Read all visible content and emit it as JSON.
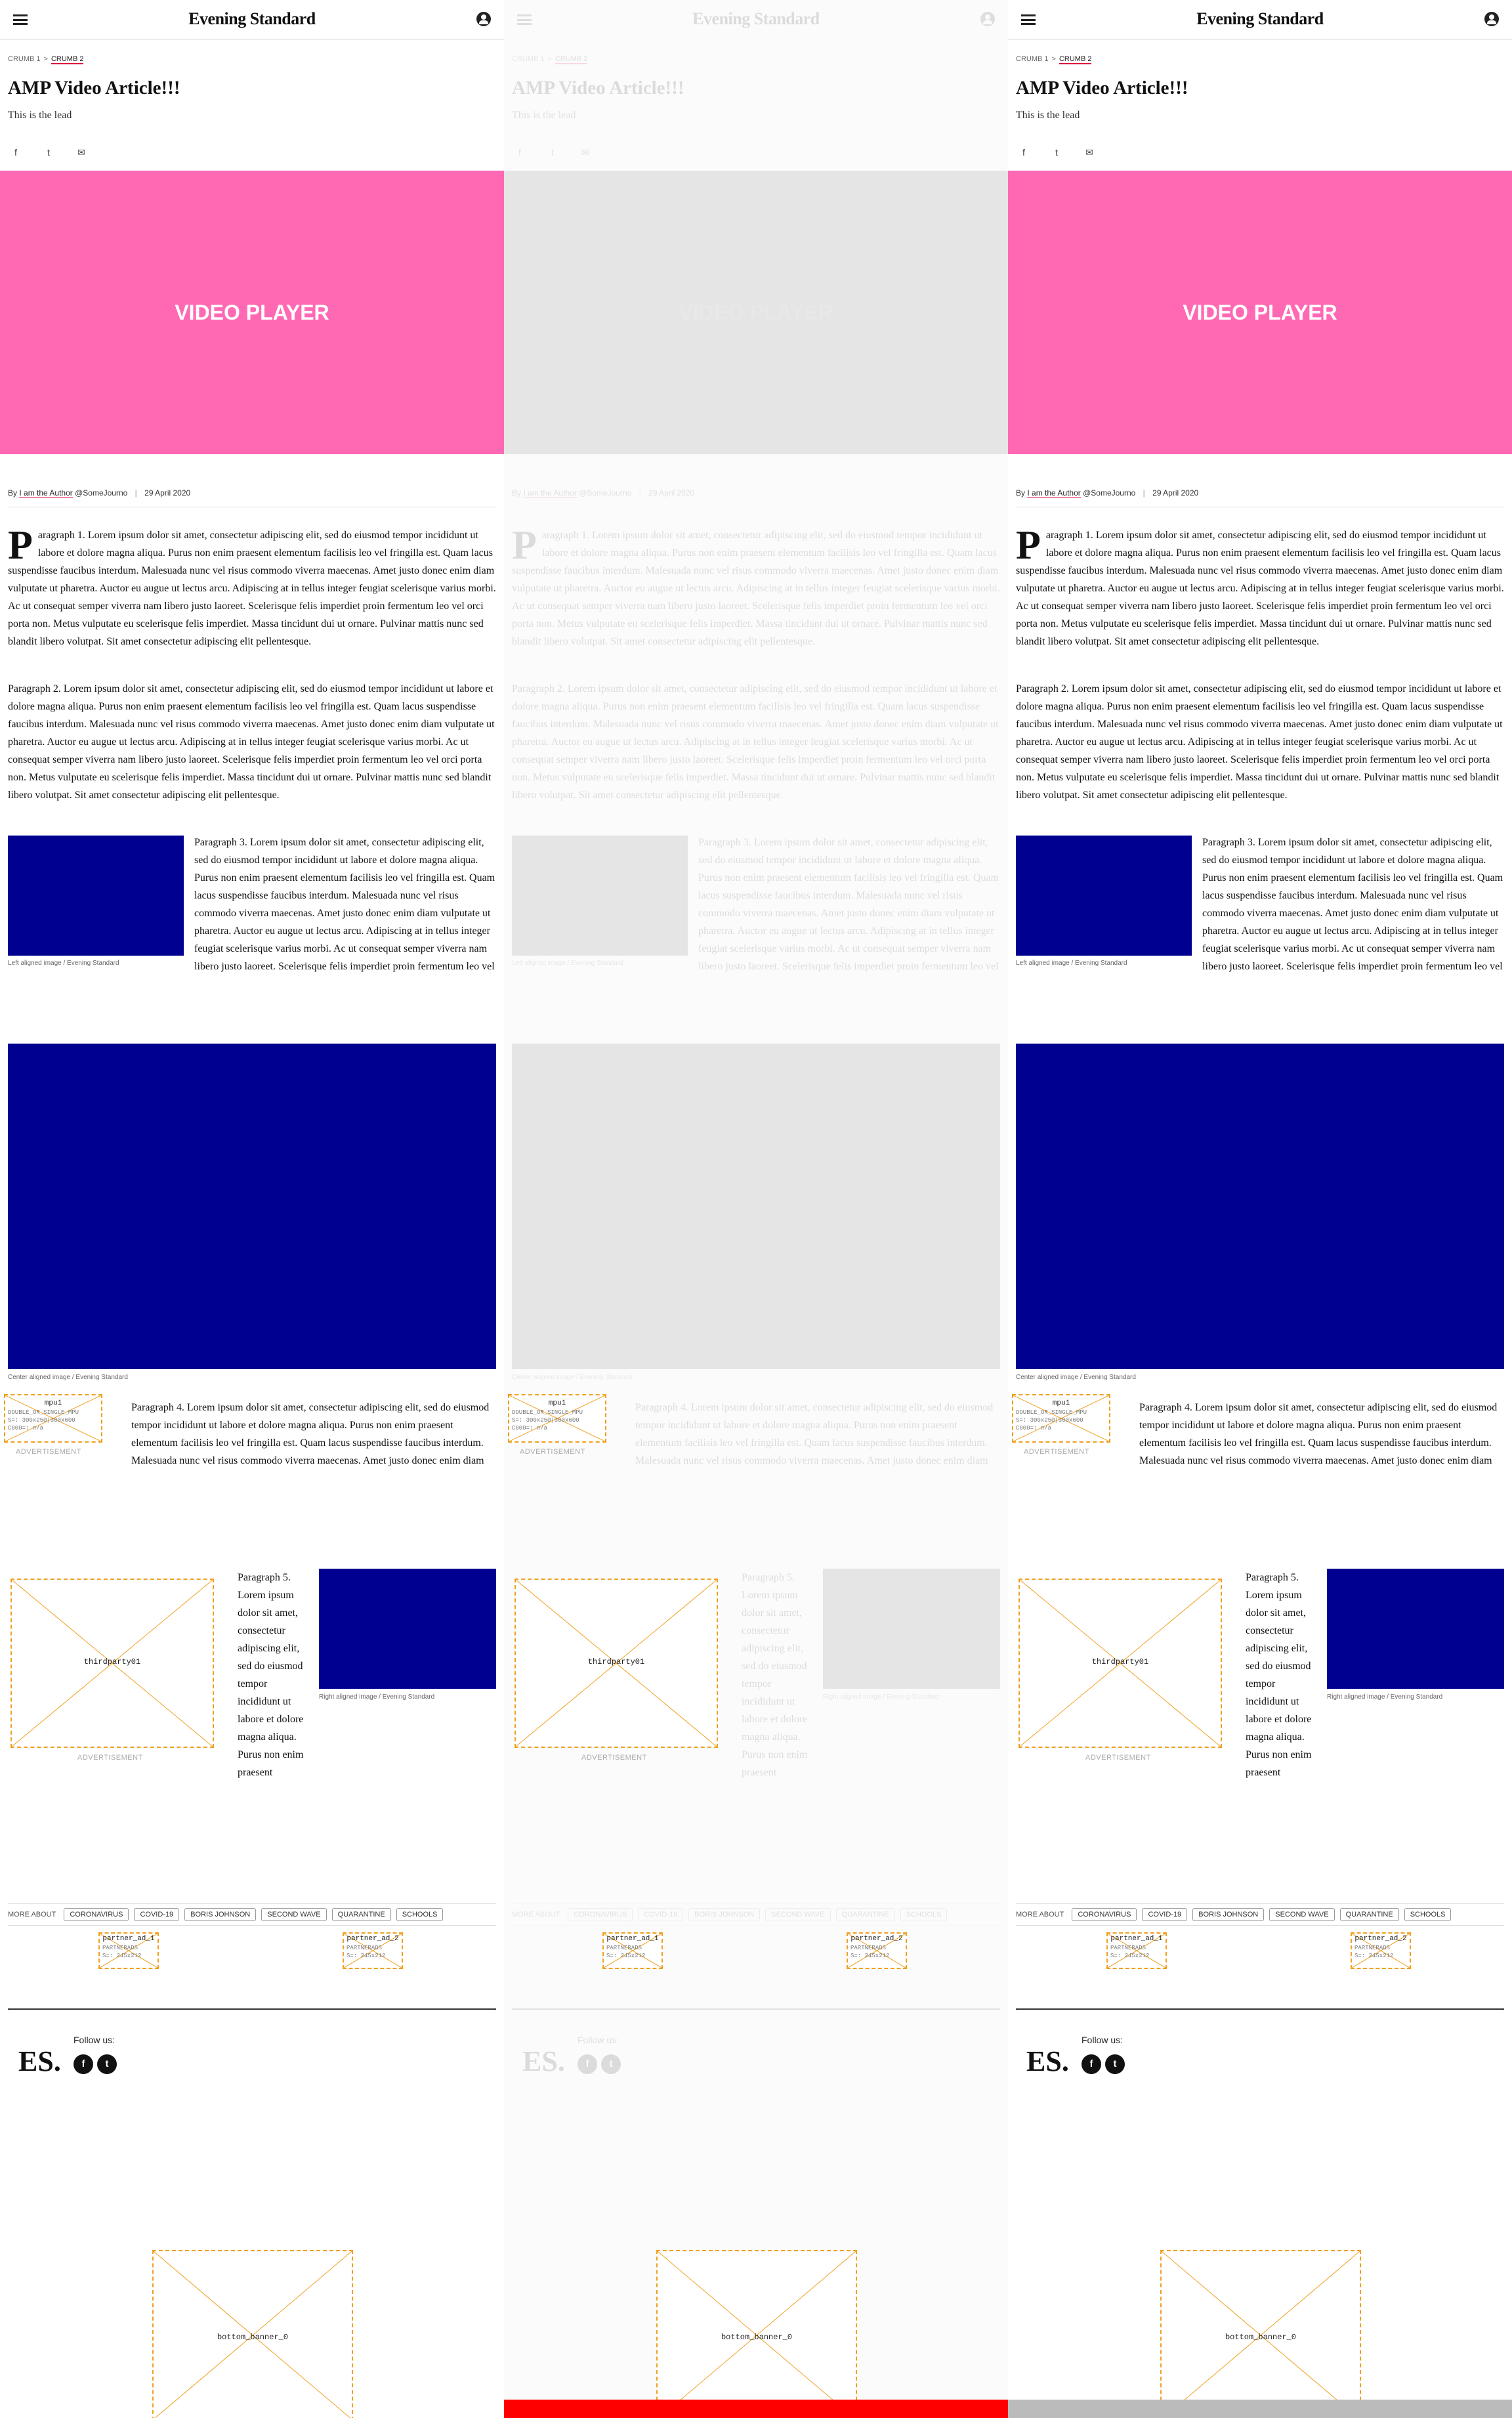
{
  "site": {
    "logo": "Evening Standard",
    "footer_logo": "ES."
  },
  "breadcrumb": {
    "crumb1": "CRUMB 1",
    "separator": ">",
    "crumb2": "CRUMB 2"
  },
  "article": {
    "title": "AMP Video Article!!!",
    "lead": "This is the lead",
    "video_label": "VIDEO PLAYER",
    "byline": {
      "prefix": "By",
      "author": "I am the Author",
      "handle": "@SomeJourno",
      "date": "29 April 2020"
    },
    "p1_dropcap": "P",
    "p1": "aragraph 1. Lorem ipsum dolor sit amet, consectetur adipiscing elit, sed do eiusmod tempor incididunt ut labore et dolore magna aliqua. Purus non enim praesent elementum facilisis leo vel fringilla est. Quam lacus suspendisse faucibus interdum. Malesuada nunc vel risus commodo viverra maecenas. Amet justo donec enim diam vulputate ut pharetra. Auctor eu augue ut lectus arcu. Adipiscing at in tellus integer feugiat scelerisque varius morbi. Ac ut consequat semper viverra nam libero justo laoreet. Scelerisque felis imperdiet proin fermentum leo vel orci porta non. Metus vulputate eu scelerisque felis imperdiet. Massa tincidunt dui ut ornare. Pulvinar mattis nunc sed blandit libero volutpat. Sit amet consectetur adipiscing elit pellentesque.",
    "p2": "Paragraph 2. Lorem ipsum dolor sit amet, consectetur adipiscing elit, sed do eiusmod tempor incididunt ut labore et dolore magna aliqua. Purus non enim praesent elementum facilisis leo vel fringilla est. Quam lacus suspendisse faucibus interdum. Malesuada nunc vel risus commodo viverra maecenas. Amet justo donec enim diam vulputate ut pharetra. Auctor eu augue ut lectus arcu. Adipiscing at in tellus integer feugiat scelerisque varius morbi. Ac ut consequat semper viverra nam libero justo laoreet. Scelerisque felis imperdiet proin fermentum leo vel orci porta non. Metus vulputate eu scelerisque felis imperdiet. Massa tincidunt dui ut ornare. Pulvinar mattis nunc sed blandit libero volutpat. Sit amet consectetur adipiscing elit pellentesque.",
    "p3": "Paragraph 3. Lorem ipsum dolor sit amet, consectetur adipiscing elit, sed do eiusmod tempor incididunt ut labore et dolore magna aliqua. Purus non enim praesent elementum facilisis leo vel fringilla est. Quam lacus suspendisse faucibus interdum. Malesuada nunc vel risus commodo viverra maecenas. Amet justo donec enim diam vulputate ut pharetra. Auctor eu augue ut lectus arcu. Adipiscing at in tellus integer feugiat scelerisque varius morbi. Ac ut consequat semper viverra nam libero justo laoreet. Scelerisque felis imperdiet proin fermentum leo vel orci porta non. Metus vulputate eu scelerisque felis imperdiet. Massa tincidunt dui ut ornare. Pulvinar mattis nunc sed blandit libero volutpat. Sit amet consectetur adipiscing elit pellentesque.",
    "p4": "Paragraph 4. Lorem ipsum dolor sit amet, consectetur adipiscing elit, sed do eiusmod tempor incididunt ut labore et dolore magna aliqua. Purus non enim praesent elementum facilisis leo vel fringilla est. Quam lacus suspendisse faucibus interdum. Malesuada nunc vel risus commodo viverra maecenas. Amet justo donec enim diam vulputate ut pharetra. Auctor eu augue ut lectus arcu. Adipiscing at in tellus integer feugiat scelerisque varius morbi. Ac ut consequat semper viverra nam libero justo laoreet. Scelerisque felis imperdiet proin fermentum leo vel orci porta non. Metus vulputate eu scelerisque felis imperdiet. Massa tincidunt dui ut ornare. Pulvinar mattis nunc sed blandit libero volutpat. Sit amet consectetur adipiscing elit pellentesque.",
    "p5": "Paragraph 5. Lorem ipsum dolor sit amet, consectetur adipiscing elit, sed do eiusmod tempor incididunt ut labore et dolore magna aliqua. Purus non enim praesent elementum facilisis leo vel fringilla est. Quam lacus suspendisse faucibus interdum. Malesuada nunc vel risus commodo viverra maecenas. Amet justo donec enim diam vulputate ut pharetra. Auctor eu augue ut lectus arcu. Adipiscing at in tellus integer feugiat scelerisque varius morbi. Ac ut consequat semper viverra nam libero justo laoreet. Scelerisque felis imperdiet proin fermentum leo vel orci porta non. Metus vulputate eu scelerisque felis imperdiet. Massa tincidunt dui ut ornare. Pulvinar mattis nunc sed blandit libero volutpat. Sit amet consectetur adipiscing elit pellentesque.",
    "caption_left": "Left aligned image / Evening Standard",
    "caption_center": "Center aligned image / Evening Standard",
    "caption_right": "Right aligned image / Evening Standard"
  },
  "ads": {
    "mpu1": {
      "label": "mpu1",
      "meta1": "DOUBLE_OR_SINGLE_MPU",
      "meta2": "S=: 300x250|300x600",
      "meta3": "C000=: n/a"
    },
    "thirdparty": "thirdparty01",
    "advert_caption": "ADVERTISEMENT",
    "partner1": {
      "label": "partner_ad_1",
      "meta1": "PARTNERADS",
      "meta2": "S=: 245x212"
    },
    "partner2": {
      "label": "partner_ad_2",
      "meta1": "PARTNERADS",
      "meta2": "S=: 245x212"
    },
    "bottom_banner": "bottom_banner_0"
  },
  "more_about": {
    "label": "MORE ABOUT",
    "tags": [
      "CORONAVIRUS",
      "COVID-19",
      "BORIS JOHNSON",
      "SECOND WAVE",
      "QUARANTINE",
      "SCHOOLS"
    ]
  },
  "footer": {
    "follow": "Follow us:",
    "facebook": "f",
    "twitter": "t"
  },
  "share_icons": {
    "facebook": "f",
    "twitter": "t",
    "email": "✉"
  },
  "colors": {
    "video": "#ff69b4",
    "image": "#000090",
    "accent": "#e0003c",
    "ad_border": "#f0a020"
  }
}
